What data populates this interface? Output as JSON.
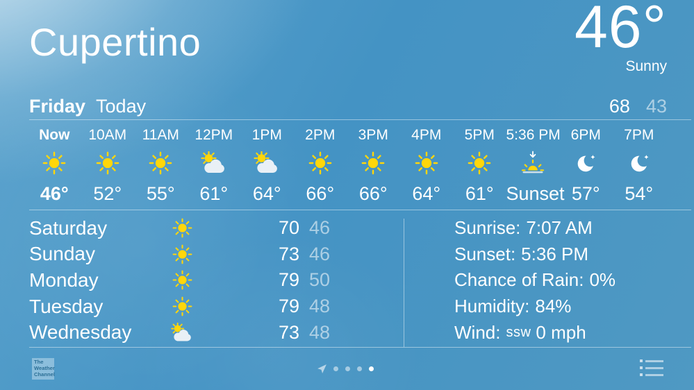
{
  "colors": {
    "background_blue": "#4493c4",
    "sun_yellow": "#ffd60a",
    "cloud_white": "#e9f0f6",
    "faded_text": "rgba(255,255,255,0.55)",
    "twc_logo_text": "#2b6f96"
  },
  "header": {
    "city": "Cupertino",
    "current_temp": "46°",
    "condition": "Sunny"
  },
  "today": {
    "day": "Friday",
    "label": "Today",
    "high": "68",
    "low": "43"
  },
  "hourly": [
    {
      "time": "Now",
      "icon": "sun",
      "temp": "46°"
    },
    {
      "time": "10AM",
      "icon": "sun",
      "temp": "52°"
    },
    {
      "time": "11AM",
      "icon": "sun",
      "temp": "55°"
    },
    {
      "time": "12PM",
      "icon": "partly-cloudy",
      "temp": "61°"
    },
    {
      "time": "1PM",
      "icon": "partly-cloudy",
      "temp": "64°"
    },
    {
      "time": "2PM",
      "icon": "sun",
      "temp": "66°"
    },
    {
      "time": "3PM",
      "icon": "sun",
      "temp": "66°"
    },
    {
      "time": "4PM",
      "icon": "sun",
      "temp": "64°"
    },
    {
      "time": "5PM",
      "icon": "sun",
      "temp": "61°"
    },
    {
      "time": "5:36 PM",
      "icon": "sunset",
      "temp": "Sunset"
    },
    {
      "time": "6PM",
      "icon": "moon",
      "temp": "57°"
    },
    {
      "time": "7PM",
      "icon": "moon",
      "temp": "54°"
    }
  ],
  "daily": [
    {
      "day": "Saturday",
      "icon": "sun",
      "high": "70",
      "low": "46"
    },
    {
      "day": "Sunday",
      "icon": "sun",
      "high": "73",
      "low": "46"
    },
    {
      "day": "Monday",
      "icon": "sun",
      "high": "79",
      "low": "50"
    },
    {
      "day": "Tuesday",
      "icon": "sun",
      "high": "79",
      "low": "48"
    },
    {
      "day": "Wednesday",
      "icon": "partly-cloudy",
      "high": "73",
      "low": "48"
    }
  ],
  "details": [
    {
      "label": "Sunrise:",
      "dir": "",
      "value": "7:07 AM"
    },
    {
      "label": "Sunset:",
      "dir": "",
      "value": "5:36 PM"
    },
    {
      "label": "Chance of Rain:",
      "dir": "",
      "value": "0%"
    },
    {
      "label": "Humidity:",
      "dir": "",
      "value": "84%"
    },
    {
      "label": "Wind:",
      "dir": "ssw",
      "value": "0 mph"
    }
  ],
  "footer": {
    "brand": {
      "line1": "The",
      "line2": "Weather",
      "line3": "Channel"
    },
    "pager": {
      "pages": 4,
      "active_index": 3,
      "has_location_page": true
    }
  }
}
